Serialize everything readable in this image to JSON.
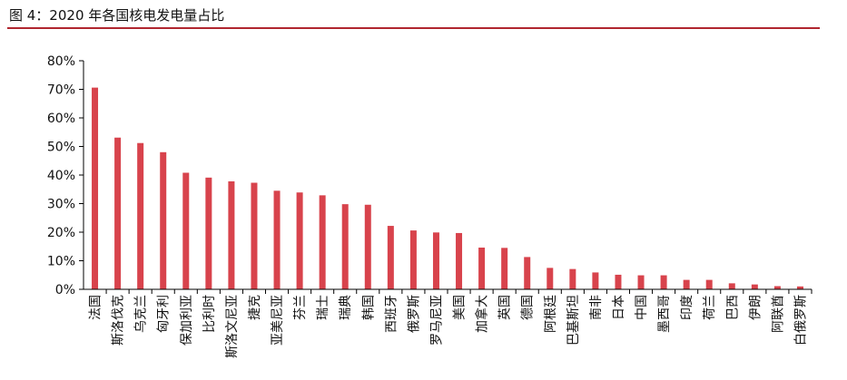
{
  "chart_data": {
    "type": "bar",
    "title": "图 4：2020 年各国核电发电量占比",
    "xlabel": "",
    "ylabel": "",
    "ylim": [
      0,
      80
    ],
    "yticks": [
      "0%",
      "10%",
      "20%",
      "30%",
      "40%",
      "50%",
      "60%",
      "70%",
      "80%"
    ],
    "grid": false,
    "bar_color": "#d8434c",
    "categories": [
      "法国",
      "斯洛伐克",
      "乌克兰",
      "匈牙利",
      "保加利亚",
      "比利时",
      "斯洛文尼亚",
      "捷克",
      "亚美尼亚",
      "芬兰",
      "瑞士",
      "瑞典",
      "韩国",
      "西班牙",
      "俄罗斯",
      "罗马尼亚",
      "美国",
      "加拿大",
      "英国",
      "德国",
      "阿根廷",
      "巴基斯坦",
      "南非",
      "日本",
      "中国",
      "墨西哥",
      "印度",
      "荷兰",
      "巴西",
      "伊朗",
      "阿联酋",
      "白俄罗斯"
    ],
    "values": [
      70.6,
      53.1,
      51.2,
      48.0,
      40.8,
      39.1,
      37.8,
      37.3,
      34.5,
      33.9,
      32.9,
      29.8,
      29.6,
      22.2,
      20.6,
      19.9,
      19.7,
      14.6,
      14.5,
      11.3,
      7.5,
      7.1,
      5.9,
      5.1,
      4.9,
      4.9,
      3.3,
      3.3,
      2.1,
      1.7,
      1.1,
      1.0
    ]
  }
}
